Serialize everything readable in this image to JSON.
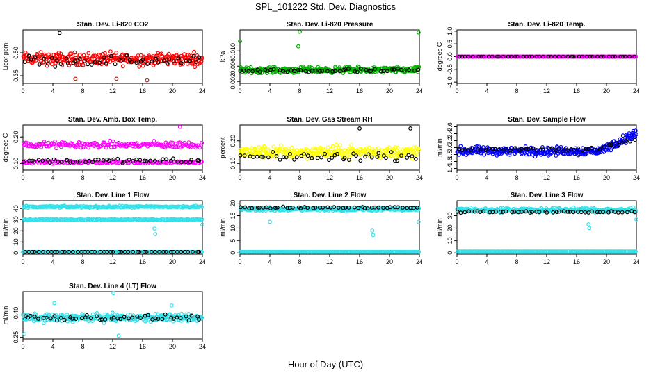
{
  "page": {
    "title": "SPL_101222  Std. Dev. Diagnostics",
    "xlabel": "Hour of Day (UTC)"
  },
  "chart_data": [
    {
      "type": "scatter",
      "title": "Stan. Dev. Li-820 CO2",
      "ylabel": "Licor ppm",
      "xlim": [
        0,
        24
      ],
      "ylim": [
        0.3,
        0.65
      ],
      "xticks": [
        "0",
        "4",
        "8",
        "12",
        "16",
        "20",
        "24"
      ],
      "yticks": [
        "0.35",
        "0.50"
      ],
      "yticks_values": [
        0.35,
        0.5
      ],
      "series": [
        {
          "color": "#ff0000",
          "pattern": "band",
          "center": 0.46,
          "spread": 0.06,
          "count": 300
        },
        {
          "color": "#000000",
          "pattern": "band",
          "center": 0.45,
          "spread": 0.05,
          "count": 48
        }
      ],
      "outliers": [
        {
          "color": "#000000",
          "x": 4.9,
          "y": 0.63
        },
        {
          "color": "#ff0000",
          "x": 7.0,
          "y": 0.33
        },
        {
          "color": "#ff0000",
          "x": 12.5,
          "y": 0.33
        },
        {
          "color": "#ff0000",
          "x": 16.6,
          "y": 0.32
        }
      ]
    },
    {
      "type": "scatter",
      "title": "Stan. Dev. Li-820 Pressure",
      "ylabel": "kPa",
      "xlim": [
        0,
        24
      ],
      "ylim": [
        0.0015,
        0.0155
      ],
      "xticks": [
        "0",
        "4",
        "8",
        "12",
        "16",
        "20",
        "24"
      ],
      "yticks": [
        "0.002",
        "0.006",
        "0.010"
      ],
      "yticks_values": [
        0.002,
        0.006,
        0.01
      ],
      "series": [
        {
          "color": "#00b000",
          "pattern": "band",
          "center": 0.005,
          "spread": 0.0011,
          "count": 300
        },
        {
          "color": "#000000",
          "pattern": "band",
          "center": 0.0048,
          "spread": 0.0008,
          "count": 48
        }
      ],
      "outliers": [
        {
          "color": "#00b000",
          "x": 8.0,
          "y": 0.015
        },
        {
          "color": "#00b000",
          "x": 23.9,
          "y": 0.0148
        },
        {
          "color": "#00b000",
          "x": 0.0,
          "y": 0.0125
        },
        {
          "color": "#00b000",
          "x": 7.8,
          "y": 0.0112
        }
      ]
    },
    {
      "type": "scatter",
      "title": "Stan. Dev. Li-820 Temp.",
      "ylabel": "degrees C",
      "xlim": [
        0,
        24
      ],
      "ylim": [
        -1.05,
        1.05
      ],
      "xticks": [
        "0",
        "4",
        "8",
        "12",
        "16",
        "20",
        "24"
      ],
      "yticks": [
        "-1.0",
        "-0.5",
        "0.0",
        "0.5",
        "1.0"
      ],
      "yticks_values": [
        -1.0,
        -0.5,
        0.0,
        0.5,
        1.0
      ],
      "series": [
        {
          "color": "#ff00ff",
          "pattern": "line",
          "center": 0.0,
          "spread": 0,
          "count": 300
        },
        {
          "color": "#000000",
          "pattern": "line",
          "center": 0.0,
          "spread": 0,
          "count": 48
        }
      ],
      "outliers": []
    },
    {
      "type": "scatter",
      "title": "Stan. Dev. Amb. Box Temp.",
      "ylabel": "degrees C",
      "xlim": [
        0,
        24
      ],
      "ylim": [
        0.075,
        0.245
      ],
      "xticks": [
        "0",
        "4",
        "8",
        "12",
        "16",
        "20",
        "24"
      ],
      "yticks": [
        "0.10",
        "0.20"
      ],
      "yticks_values": [
        0.1,
        0.2
      ],
      "series": [
        {
          "color": "#ff00ff",
          "pattern": "band",
          "center": 0.17,
          "spread": 0.018,
          "count": 180
        },
        {
          "color": "#ff00ff",
          "pattern": "band",
          "center": 0.105,
          "spread": 0.008,
          "count": 140
        },
        {
          "color": "#000000",
          "pattern": "band",
          "center": 0.11,
          "spread": 0.012,
          "count": 48
        }
      ],
      "outliers": [
        {
          "color": "#ff00ff",
          "x": 21.0,
          "y": 0.238
        }
      ]
    },
    {
      "type": "scatter",
      "title": "Stan. Dev. Gas Stream RH",
      "ylabel": "percent",
      "xlim": [
        0,
        24
      ],
      "ylim": [
        0.07,
        0.27
      ],
      "xticks": [
        "0",
        "4",
        "8",
        "12",
        "16",
        "20",
        "24"
      ],
      "yticks": [
        "0.10",
        "0.20"
      ],
      "yticks_values": [
        0.1,
        0.2
      ],
      "series": [
        {
          "color": "#ffff00",
          "pattern": "band",
          "center": 0.15,
          "spread": 0.04,
          "count": 300
        },
        {
          "color": "#000000",
          "pattern": "band",
          "center": 0.13,
          "spread": 0.025,
          "count": 48
        }
      ],
      "outliers": [
        {
          "color": "#000000",
          "x": 16.0,
          "y": 0.255
        },
        {
          "color": "#000000",
          "x": 22.8,
          "y": 0.255
        }
      ]
    },
    {
      "type": "scatter",
      "title": "Stan. Dev. Sample Flow",
      "ylabel": "ml/min",
      "xlim": [
        0,
        24
      ],
      "ylim": [
        1.35,
        2.65
      ],
      "xticks": [
        "0",
        "4",
        "8",
        "12",
        "16",
        "20",
        "24"
      ],
      "yticks": [
        "1.4",
        "1.6",
        "1.8",
        "2.0",
        "2.2",
        "2.4",
        "2.6"
      ],
      "yticks_values": [
        1.4,
        1.6,
        1.8,
        2.0,
        2.2,
        2.4,
        2.6
      ],
      "series": [
        {
          "color": "#0000ff",
          "pattern": "trend",
          "center": 1.9,
          "spread": 0.18,
          "count": 320,
          "rise_after": 19,
          "rise_to": 2.4
        },
        {
          "color": "#000000",
          "pattern": "trend",
          "center": 1.95,
          "spread": 0.1,
          "count": 48,
          "rise_after": 19,
          "rise_to": 2.2
        }
      ],
      "outliers": []
    },
    {
      "type": "scatter",
      "title": "Stan. Dev. Line 1 Flow",
      "ylabel": "ml/min",
      "xlim": [
        0,
        24
      ],
      "ylim": [
        -1,
        47
      ],
      "xticks": [
        "0",
        "4",
        "8",
        "12",
        "16",
        "20",
        "24"
      ],
      "yticks": [
        "0",
        "10",
        "20",
        "30",
        "40"
      ],
      "yticks_values": [
        0,
        10,
        20,
        30,
        40
      ],
      "series": [
        {
          "color": "#33e0e8",
          "pattern": "band",
          "center": 41.5,
          "spread": 1.2,
          "count": 200
        },
        {
          "color": "#33e0e8",
          "pattern": "band",
          "center": 30.0,
          "spread": 1.0,
          "count": 200
        },
        {
          "color": "#33e0e8",
          "pattern": "line",
          "center": 1.0,
          "spread": 0,
          "count": 200
        },
        {
          "color": "#000000",
          "pattern": "line",
          "center": 1.0,
          "spread": 0,
          "count": 48
        }
      ],
      "outliers": [
        {
          "color": "#33e0e8",
          "x": 17.6,
          "y": 22.0
        },
        {
          "color": "#33e0e8",
          "x": 17.7,
          "y": 17.0
        },
        {
          "color": "#33e0e8",
          "x": 24.0,
          "y": 25.5
        }
      ]
    },
    {
      "type": "scatter",
      "title": "Stan. Dev. Line 2 Flow",
      "ylabel": "ml/min",
      "xlim": [
        0,
        24
      ],
      "ylim": [
        -0.5,
        21
      ],
      "xticks": [
        "0",
        "4",
        "8",
        "12",
        "16",
        "20",
        "24"
      ],
      "yticks": [
        "0",
        "5",
        "10",
        "15",
        "20"
      ],
      "yticks_values": [
        0,
        5,
        10,
        15,
        20
      ],
      "series": [
        {
          "color": "#33e0e8",
          "pattern": "band",
          "center": 17.6,
          "spread": 1.0,
          "count": 300
        },
        {
          "color": "#33e0e8",
          "pattern": "line",
          "center": 0.4,
          "spread": 0,
          "count": 200
        },
        {
          "color": "#000000",
          "pattern": "band",
          "center": 18.2,
          "spread": 0.5,
          "count": 48
        }
      ],
      "outliers": [
        {
          "color": "#33e0e8",
          "x": 17.7,
          "y": 9.0
        },
        {
          "color": "#33e0e8",
          "x": 17.8,
          "y": 7.2
        },
        {
          "color": "#33e0e8",
          "x": 23.9,
          "y": 12.5
        },
        {
          "color": "#33e0e8",
          "x": 4.0,
          "y": 12.5
        }
      ]
    },
    {
      "type": "scatter",
      "title": "Stan. Dev. Line 3 Flow",
      "ylabel": "ml/min",
      "xlim": [
        0,
        24
      ],
      "ylim": [
        -1,
        42
      ],
      "xticks": [
        "0",
        "4",
        "8",
        "12",
        "16",
        "20",
        "24"
      ],
      "yticks": [
        "0",
        "10",
        "20",
        "30"
      ],
      "yticks_values": [
        0,
        10,
        20,
        30
      ],
      "series": [
        {
          "color": "#33e0e8",
          "pattern": "band",
          "center": 34.5,
          "spread": 2.5,
          "count": 300
        },
        {
          "color": "#33e0e8",
          "pattern": "line",
          "center": 1.2,
          "spread": 0,
          "count": 200
        },
        {
          "color": "#000000",
          "pattern": "band",
          "center": 33.0,
          "spread": 1.0,
          "count": 48
        }
      ],
      "outliers": [
        {
          "color": "#33e0e8",
          "x": 17.6,
          "y": 23.0
        },
        {
          "color": "#33e0e8",
          "x": 17.7,
          "y": 20.0
        },
        {
          "color": "#33e0e8",
          "x": 24.0,
          "y": 27.0
        }
      ]
    },
    {
      "type": "scatter",
      "title": "Stan. Dev. Line 4 (LT) Flow",
      "ylabel": "ml/min",
      "xlim": [
        0,
        24
      ],
      "ylim": [
        0.24,
        0.53
      ],
      "xticks": [
        "0",
        "4",
        "8",
        "12",
        "16",
        "20",
        "24"
      ],
      "yticks": [
        "0.25",
        "0.40"
      ],
      "yticks_values": [
        0.25,
        0.4
      ],
      "series": [
        {
          "color": "#33e0e8",
          "pattern": "band",
          "center": 0.37,
          "spread": 0.035,
          "count": 300
        },
        {
          "color": "#000000",
          "pattern": "band",
          "center": 0.37,
          "spread": 0.025,
          "count": 48
        }
      ],
      "outliers": [
        {
          "color": "#33e0e8",
          "x": 12.1,
          "y": 0.52
        },
        {
          "color": "#33e0e8",
          "x": 4.2,
          "y": 0.46
        },
        {
          "color": "#33e0e8",
          "x": 19.9,
          "y": 0.445
        },
        {
          "color": "#33e0e8",
          "x": 12.8,
          "y": 0.26
        },
        {
          "color": "#33e0e8",
          "x": 0.2,
          "y": 0.27
        }
      ]
    }
  ]
}
